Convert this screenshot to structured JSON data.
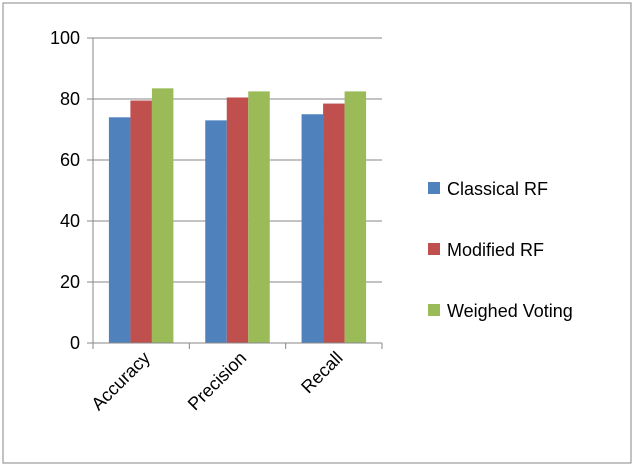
{
  "chart_data": {
    "type": "bar",
    "categories": [
      "Accuracy",
      "Precision",
      "Recall"
    ],
    "series": [
      {
        "name": "Classical RF",
        "values": [
          74,
          73,
          75
        ],
        "color": "#4f81bd"
      },
      {
        "name": "Modified RF",
        "values": [
          79.5,
          80.5,
          78.5
        ],
        "color": "#c0504d"
      },
      {
        "name": "Weighed Voting",
        "values": [
          83.5,
          82.5,
          82.5
        ],
        "color": "#9bbb59"
      }
    ],
    "ylim": [
      0,
      100
    ],
    "yticks": [
      0,
      20,
      40,
      60,
      80,
      100
    ],
    "grid": true,
    "legend": "right",
    "title": "",
    "xlabel": "",
    "ylabel": ""
  }
}
